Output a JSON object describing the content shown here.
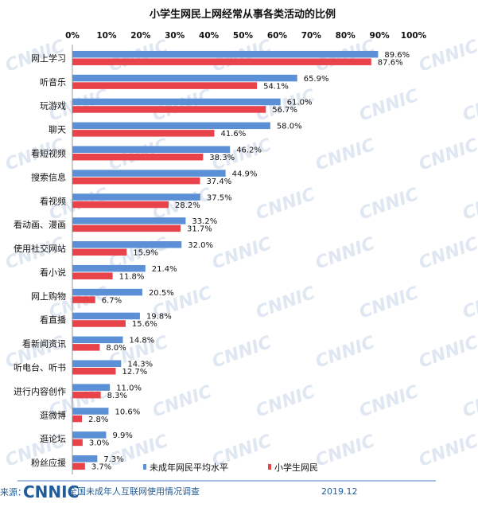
{
  "chart_data": {
    "type": "bar",
    "orientation": "horizontal",
    "title": "小学生网民上网经常从事各类活动的比例",
    "xlim": [
      0,
      100
    ],
    "x_ticks": [
      "0%",
      "10%",
      "20%",
      "30%",
      "40%",
      "50%",
      "60%",
      "70%",
      "80%",
      "90%",
      "100%"
    ],
    "categories": [
      "网上学习",
      "听音乐",
      "玩游戏",
      "聊天",
      "看短视频",
      "搜索信息",
      "看视频",
      "看动画、漫画",
      "使用社交网站",
      "看小说",
      "网上购物",
      "看直播",
      "看新闻资讯",
      "听电台、听书",
      "进行内容创作",
      "逛微博",
      "逛论坛",
      "粉丝应援"
    ],
    "series": [
      {
        "name": "未成年网民平均水平",
        "color": "#5b8fd6",
        "values": [
          89.6,
          65.9,
          61.0,
          58.0,
          46.2,
          44.9,
          37.5,
          33.2,
          32.0,
          21.4,
          20.5,
          19.8,
          14.8,
          14.3,
          11.0,
          10.6,
          9.9,
          7.3
        ]
      },
      {
        "name": "小学生网民",
        "color": "#e8424a",
        "values": [
          87.6,
          54.1,
          56.7,
          41.6,
          38.3,
          37.4,
          28.2,
          31.7,
          15.9,
          11.8,
          6.7,
          15.6,
          8.0,
          12.7,
          8.3,
          2.8,
          3.0,
          3.7
        ]
      }
    ],
    "value_suffix": "%",
    "legend_position": "bottom-right",
    "grid": false
  },
  "footer": {
    "source_label": "来源：",
    "logo_text": "CNNIC",
    "survey_name": "全国未成年人互联网使用情况调查",
    "date": "2019.12"
  },
  "watermark": "CNNIC"
}
